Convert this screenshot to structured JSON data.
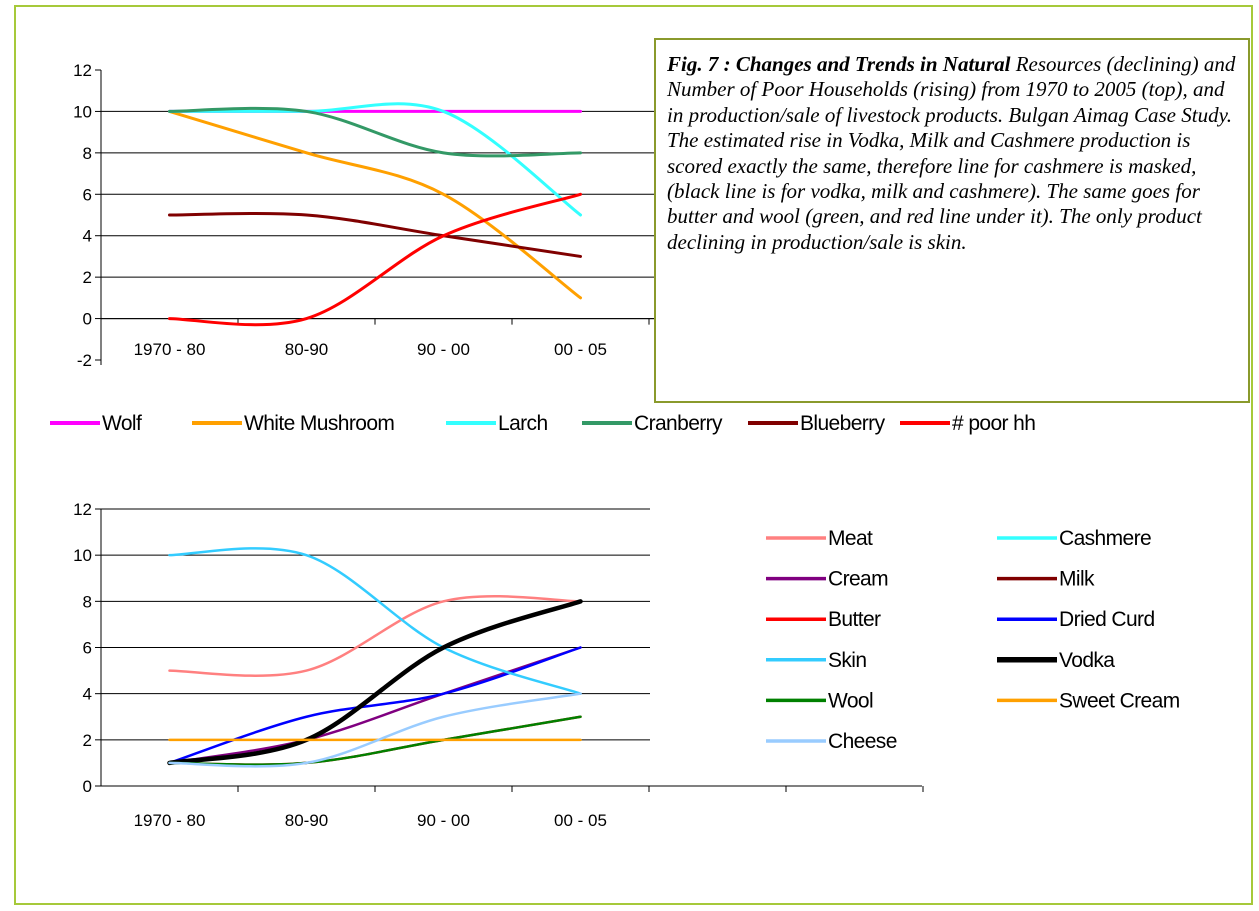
{
  "caption": {
    "lead": "Fig. 7 : Changes and Trends in Natural",
    "body": " Resources (declining) and Number of Poor Households (rising) from 1970 to 2005 (top), and in production/sale of livestock products. Bulgan Aimag Case Study. The estimated rise in Vodka, Milk and Cashmere production is scored exactly the same, therefore line for cashmere is masked, (black line is for vodka, milk and cashmere). The same goes for butter and wool (green, and red line under it). The only product declining in production/sale is skin."
  },
  "chart_data": [
    {
      "type": "line",
      "categories": [
        "1970 - 80",
        "80-90",
        "90 - 00",
        "00 - 05"
      ],
      "ylim": [
        -2,
        12
      ],
      "yticks": [
        "-2",
        "0",
        "2",
        "4",
        "6",
        "8",
        "10",
        "12"
      ],
      "grid": true,
      "legend": "bottom",
      "series": [
        {
          "name": "Wolf",
          "color": "#ff00ff",
          "values": [
            10,
            10,
            10,
            10
          ]
        },
        {
          "name": "White Mushroom",
          "color": "#ffa000",
          "values": [
            10,
            8,
            6,
            1
          ]
        },
        {
          "name": "Larch",
          "color": "#33ffff",
          "values": [
            10,
            10,
            10,
            5
          ]
        },
        {
          "name": "Cranberry",
          "color": "#339966",
          "values": [
            10,
            10,
            8,
            8
          ]
        },
        {
          "name": "Blueberry",
          "color": "#800000",
          "values": [
            5,
            5,
            4,
            3
          ]
        },
        {
          "name": "# poor hh",
          "color": "#ff0000",
          "values": [
            0,
            0,
            4,
            6
          ]
        }
      ]
    },
    {
      "type": "line",
      "categories": [
        "1970 - 80",
        "80-90",
        "90 - 00",
        "00 - 05"
      ],
      "ylim": [
        0,
        12
      ],
      "yticks": [
        "0",
        "2",
        "4",
        "6",
        "8",
        "10",
        "12"
      ],
      "grid": true,
      "legend": "right",
      "series": [
        {
          "name": "Meat",
          "color": "#ff8080",
          "values": [
            5,
            5,
            8,
            8
          ]
        },
        {
          "name": "Cashmere",
          "color": "#33ffff",
          "values": [
            1,
            2,
            6,
            8
          ]
        },
        {
          "name": "Cream",
          "color": "#800080",
          "values": [
            1,
            2,
            4,
            6
          ]
        },
        {
          "name": "Milk",
          "color": "#800000",
          "values": [
            1,
            2,
            6,
            8
          ]
        },
        {
          "name": "Butter",
          "color": "#ff0000",
          "values": [
            1,
            1,
            2,
            3
          ]
        },
        {
          "name": "Dried Curd",
          "color": "#0000ff",
          "values": [
            1,
            3,
            4,
            6
          ]
        },
        {
          "name": "Skin",
          "color": "#33ccff",
          "values": [
            10,
            10,
            6,
            4
          ]
        },
        {
          "name": "Vodka",
          "color": "#000000",
          "values": [
            1,
            2,
            6,
            8
          ]
        },
        {
          "name": "Wool",
          "color": "#008000",
          "values": [
            1,
            1,
            2,
            3
          ]
        },
        {
          "name": "Sweet Cream",
          "color": "#ffa000",
          "values": [
            2,
            2,
            2,
            2
          ]
        },
        {
          "name": "Cheese",
          "color": "#99ccff",
          "values": [
            1,
            1,
            3,
            4
          ]
        }
      ]
    }
  ]
}
